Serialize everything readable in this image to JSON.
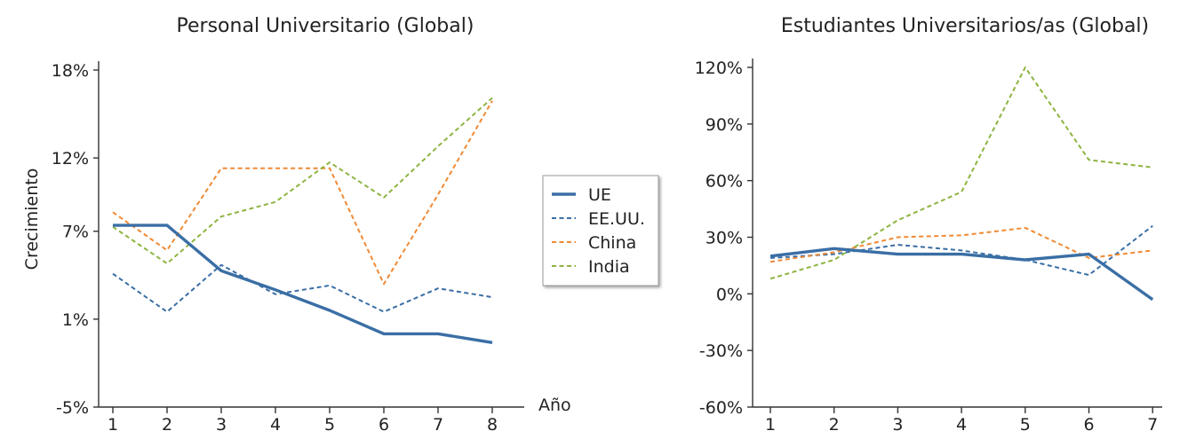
{
  "colors": {
    "UE": "#3a6ea5",
    "EE.UU.": "#3a6ea5",
    "China": "#f08a35",
    "India": "#8db440"
  },
  "legend": {
    "placement": "between-charts",
    "entries": [
      "UE",
      "EE.UU.",
      "China",
      "India"
    ]
  },
  "chart_data": [
    {
      "type": "line",
      "title": "Personal Universitario (Global)",
      "xlabel": "Año",
      "ylabel": "Crecimiento",
      "x": [
        1,
        2,
        3,
        4,
        5,
        6,
        7,
        8
      ],
      "ylim": [
        -5,
        18
      ],
      "yticks": [
        -5,
        1,
        7,
        12,
        18
      ],
      "ytick_labels": [
        "-5%",
        "1%",
        "7%",
        "12%",
        "18%"
      ],
      "xtick_labels": [
        "1",
        "2",
        "3",
        "4",
        "5",
        "6",
        "7",
        "8"
      ],
      "grid": false,
      "series": [
        {
          "name": "UE",
          "style": "solid",
          "values": [
            7.4,
            7.4,
            4.3,
            3.0,
            1.6,
            0.0,
            0.0,
            -0.6
          ]
        },
        {
          "name": "EE.UU.",
          "style": "dashed",
          "values": [
            4.1,
            1.5,
            4.7,
            2.7,
            3.3,
            1.5,
            3.1,
            2.5
          ]
        },
        {
          "name": "China",
          "style": "dashed",
          "values": [
            8.3,
            5.7,
            11.3,
            11.3,
            11.3,
            3.4,
            9.5,
            15.9
          ]
        },
        {
          "name": "India",
          "style": "dashed",
          "values": [
            7.3,
            4.8,
            8.0,
            9.0,
            11.7,
            9.3,
            12.8,
            16.1
          ]
        }
      ]
    },
    {
      "type": "line",
      "title": "Estudiantes Universitarios/as (Global)",
      "xlabel": "",
      "ylabel": "",
      "x": [
        1,
        2,
        3,
        4,
        5,
        6,
        7
      ],
      "ylim": [
        -60,
        120
      ],
      "yticks": [
        -60,
        -30,
        0,
        30,
        60,
        90,
        120
      ],
      "ytick_labels": [
        "-60%",
        "-30%",
        "0%",
        "30%",
        "60%",
        "90%",
        "120%"
      ],
      "xtick_labels": [
        "1",
        "2",
        "3",
        "4",
        "5",
        "6",
        "7"
      ],
      "grid": false,
      "series": [
        {
          "name": "UE",
          "style": "solid",
          "values": [
            20,
            24,
            21,
            21,
            18,
            21,
            -3
          ]
        },
        {
          "name": "EE.UU.",
          "style": "dashed",
          "values": [
            19,
            21,
            26,
            23,
            18,
            10,
            36
          ]
        },
        {
          "name": "China",
          "style": "dashed",
          "values": [
            17,
            22,
            30,
            31,
            35,
            19,
            23
          ]
        },
        {
          "name": "India",
          "style": "dashed",
          "values": [
            8,
            18,
            39,
            54,
            120,
            71,
            67
          ]
        }
      ]
    }
  ]
}
